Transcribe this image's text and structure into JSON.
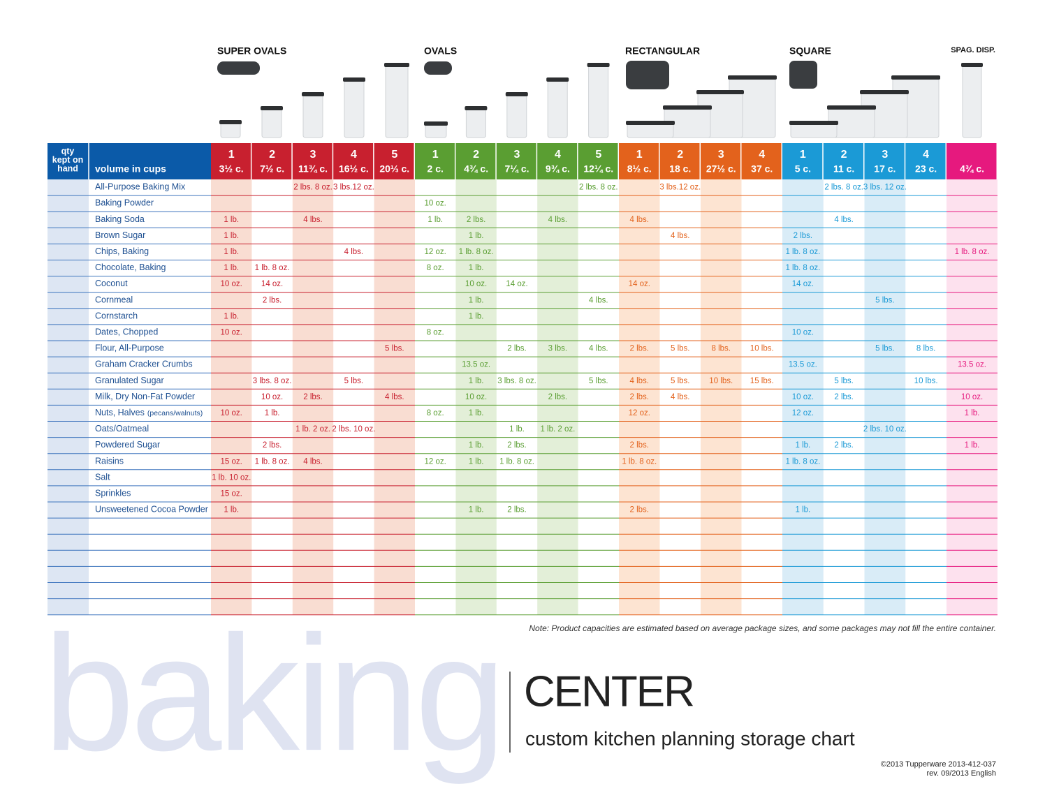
{
  "groups": [
    {
      "name": "SUPER OVALS",
      "columns": [
        {
          "number": "1",
          "volume": "3½ c."
        },
        {
          "number": "2",
          "volume": "7½ c."
        },
        {
          "number": "3",
          "volume": "11¾ c."
        },
        {
          "number": "4",
          "volume": "16½ c."
        },
        {
          "number": "5",
          "volume": "20⅓ c."
        }
      ]
    },
    {
      "name": "OVALS",
      "columns": [
        {
          "number": "1",
          "volume": "2 c."
        },
        {
          "number": "2",
          "volume": "4¾ c."
        },
        {
          "number": "3",
          "volume": "7¼ c."
        },
        {
          "number": "4",
          "volume": "9¾ c."
        },
        {
          "number": "5",
          "volume": "12¼ c."
        }
      ]
    },
    {
      "name": "RECTANGULAR",
      "columns": [
        {
          "number": "1",
          "volume": "8½ c."
        },
        {
          "number": "2",
          "volume": "18 c."
        },
        {
          "number": "3",
          "volume": "27½ c."
        },
        {
          "number": "4",
          "volume": "37 c."
        }
      ]
    },
    {
      "name": "SQUARE",
      "columns": [
        {
          "number": "1",
          "volume": "5 c."
        },
        {
          "number": "2",
          "volume": "11 c."
        },
        {
          "number": "3",
          "volume": "17 c."
        },
        {
          "number": "4",
          "volume": "23 c."
        }
      ]
    },
    {
      "name": "SPAG. DISP.",
      "columns": [
        {
          "volume": "4¾ c."
        }
      ]
    }
  ],
  "header": {
    "qty": [
      "qty",
      "kept on",
      "hand"
    ],
    "volume": "volume in cups"
  },
  "rows": [
    {
      "name": "All-Purpose Baking Mix",
      "cells": [
        null,
        null,
        "2 lbs. 8 oz.",
        "3 lbs.12 oz.",
        null,
        null,
        null,
        null,
        null,
        "2 lbs. 8 oz.",
        null,
        "3 lbs.12 oz.",
        null,
        null,
        null,
        "2 lbs. 8 oz.",
        "3 lbs. 12 oz.",
        null,
        null
      ]
    },
    {
      "name": "Baking Powder",
      "cells": [
        null,
        null,
        null,
        null,
        null,
        "10 oz.",
        null,
        null,
        null,
        null,
        null,
        null,
        null,
        null,
        null,
        null,
        null,
        null,
        null
      ]
    },
    {
      "name": "Baking Soda",
      "cells": [
        "1 lb.",
        null,
        "4 lbs.",
        null,
        null,
        "1 lb.",
        "2 lbs.",
        null,
        "4 lbs.",
        null,
        "4 lbs.",
        null,
        null,
        null,
        null,
        "4 lbs.",
        null,
        null,
        null
      ]
    },
    {
      "name": "Brown Sugar",
      "cells": [
        "1 lb.",
        null,
        null,
        null,
        null,
        null,
        "1 lb.",
        null,
        null,
        null,
        null,
        "4 lbs.",
        null,
        null,
        "2 lbs.",
        null,
        null,
        null,
        null
      ]
    },
    {
      "name": "Chips, Baking",
      "cells": [
        "1 lb.",
        null,
        null,
        "4 lbs.",
        null,
        "12 oz.",
        "1 lb. 8 oz.",
        null,
        null,
        null,
        null,
        null,
        null,
        null,
        "1 lb. 8 oz.",
        null,
        null,
        null,
        "1 lb. 8 oz."
      ]
    },
    {
      "name": "Chocolate, Baking",
      "cells": [
        "1 lb.",
        "1 lb. 8 oz.",
        null,
        null,
        null,
        "8 oz.",
        "1 lb.",
        null,
        null,
        null,
        null,
        null,
        null,
        null,
        "1 lb. 8 oz.",
        null,
        null,
        null,
        null
      ]
    },
    {
      "name": "Coconut",
      "cells": [
        "10 oz.",
        "14 oz.",
        null,
        null,
        null,
        null,
        "10 oz.",
        "14 oz.",
        null,
        null,
        "14 oz.",
        null,
        null,
        null,
        "14 oz.",
        null,
        null,
        null,
        null
      ]
    },
    {
      "name": "Cornmeal",
      "cells": [
        null,
        "2 lbs.",
        null,
        null,
        null,
        null,
        "1 lb.",
        null,
        null,
        "4 lbs.",
        null,
        null,
        null,
        null,
        null,
        null,
        "5 lbs.",
        null,
        null
      ]
    },
    {
      "name": "Cornstarch",
      "cells": [
        "1 lb.",
        null,
        null,
        null,
        null,
        null,
        "1 lb.",
        null,
        null,
        null,
        null,
        null,
        null,
        null,
        null,
        null,
        null,
        null,
        null
      ]
    },
    {
      "name": "Dates, Chopped",
      "cells": [
        "10 oz.",
        null,
        null,
        null,
        null,
        "8 oz.",
        null,
        null,
        null,
        null,
        null,
        null,
        null,
        null,
        "10 oz.",
        null,
        null,
        null,
        null
      ]
    },
    {
      "name": "Flour, All-Purpose",
      "cells": [
        null,
        null,
        null,
        null,
        "5 lbs.",
        null,
        null,
        "2 lbs.",
        "3 lbs.",
        "4 lbs.",
        "2 lbs.",
        "5 lbs.",
        "8 lbs.",
        "10 lbs.",
        null,
        null,
        "5 lbs.",
        "8 lbs.",
        null
      ]
    },
    {
      "name": "Graham Cracker Crumbs",
      "cells": [
        null,
        null,
        null,
        null,
        null,
        null,
        "13.5 oz.",
        null,
        null,
        null,
        null,
        null,
        null,
        null,
        "13.5 oz.",
        null,
        null,
        null,
        "13.5 oz."
      ]
    },
    {
      "name": "Granulated Sugar",
      "cells": [
        null,
        "3 lbs. 8 oz.",
        null,
        "5 lbs.",
        null,
        null,
        "1 lb.",
        "3 lbs. 8 oz.",
        null,
        "5 lbs.",
        "4 lbs.",
        "5 lbs.",
        "10 lbs.",
        "15 lbs.",
        null,
        "5 lbs.",
        null,
        "10 lbs.",
        null
      ]
    },
    {
      "name": "Milk, Dry Non-Fat Powder",
      "cells": [
        null,
        "10 oz.",
        "2 lbs.",
        null,
        "4 lbs.",
        null,
        "10 oz.",
        null,
        "2 lbs.",
        null,
        "2 lbs.",
        "4 lbs.",
        null,
        null,
        "10 oz.",
        "2 lbs.",
        null,
        null,
        "10 oz."
      ]
    },
    {
      "name": "Nuts, Halves",
      "note": "(pecans/walnuts)",
      "cells": [
        "10 oz.",
        "1 lb.",
        null,
        null,
        null,
        "8 oz.",
        "1 lb.",
        null,
        null,
        null,
        "12 oz.",
        null,
        null,
        null,
        "12 oz.",
        null,
        null,
        null,
        "1 lb."
      ]
    },
    {
      "name": "Oats/Oatmeal",
      "cells": [
        null,
        null,
        "1 lb. 2 oz.",
        "2 lbs. 10 oz.",
        null,
        null,
        null,
        "1 lb.",
        "1 lb. 2 oz.",
        null,
        null,
        null,
        null,
        null,
        null,
        null,
        "2 lbs. 10 oz.",
        null,
        null
      ]
    },
    {
      "name": "Powdered Sugar",
      "cells": [
        null,
        "2 lbs.",
        null,
        null,
        null,
        null,
        "1 lb.",
        "2 lbs.",
        null,
        null,
        "2 lbs.",
        null,
        null,
        null,
        "1 lb.",
        "2 lbs.",
        null,
        null,
        "1 lb."
      ]
    },
    {
      "name": "Raisins",
      "cells": [
        "15 oz.",
        "1 lb. 8 oz.",
        "4 lbs.",
        null,
        null,
        "12 oz.",
        "1 lb.",
        "1 lb. 8 oz.",
        null,
        null,
        "1 lb. 8 oz.",
        null,
        null,
        null,
        "1 lb. 8 oz.",
        null,
        null,
        null,
        null
      ]
    },
    {
      "name": "Salt",
      "cells": [
        "1 lb. 10 oz.",
        null,
        null,
        null,
        null,
        null,
        null,
        null,
        null,
        null,
        null,
        null,
        null,
        null,
        null,
        null,
        null,
        null,
        null
      ]
    },
    {
      "name": "Sprinkles",
      "cells": [
        "15 oz.",
        null,
        null,
        null,
        null,
        null,
        null,
        null,
        null,
        null,
        null,
        null,
        null,
        null,
        null,
        null,
        null,
        null,
        null
      ]
    },
    {
      "name": "Unsweetened Cocoa Powder",
      "cells": [
        "1 lb.",
        null,
        null,
        null,
        null,
        null,
        "1 lb.",
        "2 lbs.",
        null,
        null,
        "2 lbs.",
        null,
        null,
        null,
        "1 lb.",
        null,
        null,
        null,
        null
      ]
    }
  ],
  "note": "Note: Product capacities are estimated based on average package sizes, and some packages may not fill the entire container.",
  "title": {
    "big": "baking",
    "word": "CENTER",
    "subtitle": "custom kitchen planning storage chart"
  },
  "footer": [
    "©2013 Tupperware  2013-412-037",
    "rev. 09/2013   English"
  ]
}
